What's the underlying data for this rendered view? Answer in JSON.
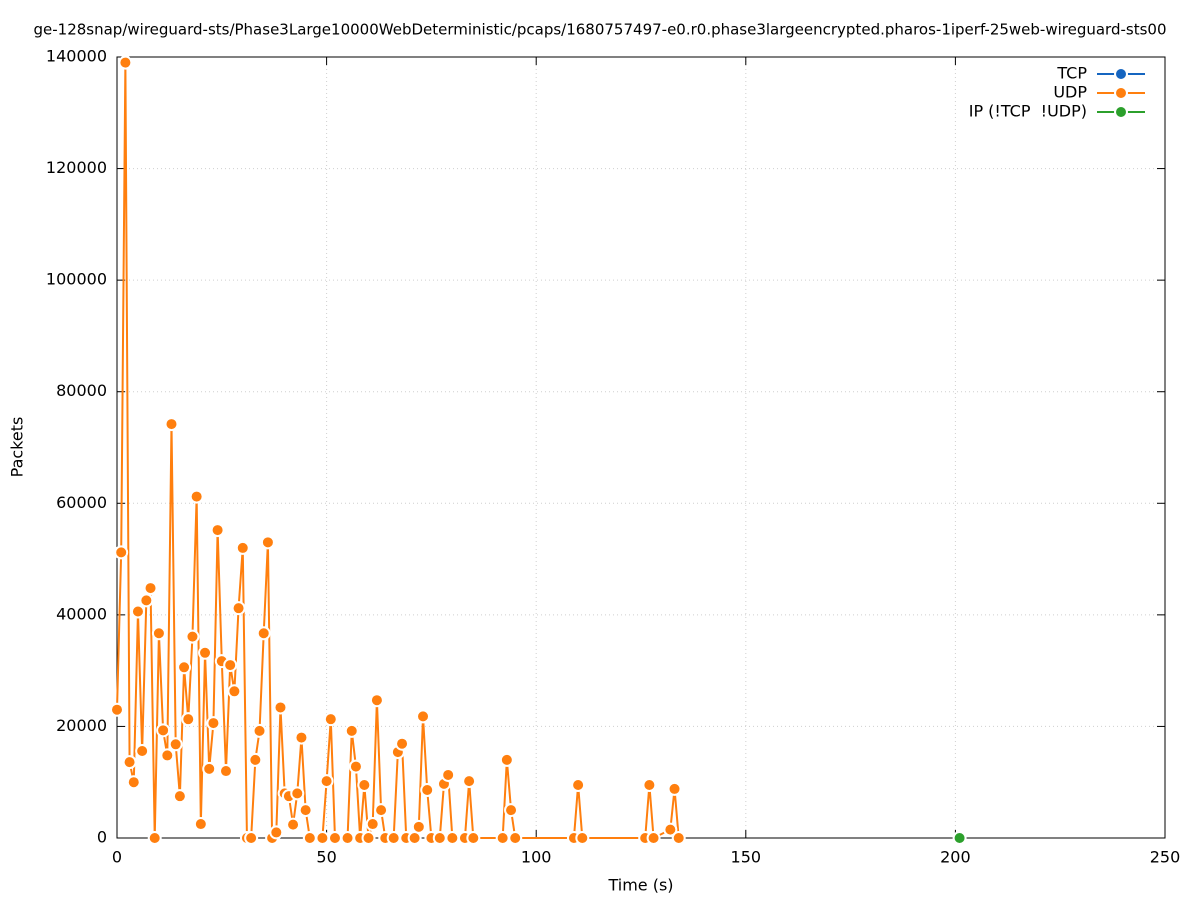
{
  "chart_data": {
    "type": "line",
    "title": "ge-128snap/wireguard-sts/Phase3Large10000WebDeterministic/pcaps/1680757497-e0.r0.phase3largeencrypted.pharos-1iperf-25web-wireguard-sts00",
    "xlabel": "Time (s)",
    "ylabel": "Packets",
    "xlim": [
      0,
      250
    ],
    "xticks": [
      0,
      50,
      100,
      150,
      200,
      250
    ],
    "ylim": [
      0,
      140000
    ],
    "yticks": [
      0,
      20000,
      40000,
      60000,
      80000,
      100000,
      120000,
      140000
    ],
    "grid": true,
    "legend": "top-right",
    "series": [
      {
        "name": "TCP",
        "color": "#1565c0",
        "x": [],
        "values": []
      },
      {
        "name": "UDP",
        "color": "#ff7f0e",
        "x": [
          0,
          1,
          2,
          3,
          4,
          5,
          6,
          7,
          8,
          9,
          10,
          11,
          12,
          13,
          14,
          15,
          16,
          17,
          18,
          19,
          20,
          21,
          22,
          23,
          24,
          25,
          26,
          27,
          28,
          29,
          30,
          31,
          32,
          33,
          34,
          35,
          36,
          37,
          38,
          39,
          40,
          41,
          42,
          43,
          44,
          45,
          46,
          49,
          50,
          51,
          52,
          55,
          56,
          57,
          58,
          59,
          60,
          61,
          62,
          63,
          64,
          66,
          67,
          68,
          69,
          71,
          72,
          73,
          74,
          75,
          77,
          78,
          79,
          80,
          83,
          84,
          85,
          92,
          93,
          94,
          95,
          109,
          110,
          111,
          126,
          127,
          128,
          132,
          133,
          134
        ],
        "values": [
          23000,
          51200,
          139000,
          13600,
          10000,
          40600,
          15600,
          42600,
          44800,
          0,
          36700,
          19300,
          14800,
          74200,
          16800,
          7500,
          30600,
          21300,
          36100,
          61200,
          2500,
          33200,
          12400,
          20600,
          55200,
          31700,
          12000,
          31000,
          26300,
          41200,
          52000,
          0,
          0,
          14000,
          19200,
          36700,
          53000,
          0,
          1000,
          23400,
          8000,
          7500,
          2400,
          8000,
          18000,
          5000,
          0,
          0,
          10200,
          21300,
          0,
          0,
          19200,
          12800,
          0,
          9500,
          0,
          2500,
          24700,
          5000,
          0,
          0,
          15400,
          16900,
          0,
          0,
          2000,
          21800,
          8600,
          0,
          0,
          9700,
          11300,
          0,
          0,
          10200,
          0,
          0,
          14000,
          5000,
          0,
          0,
          9500,
          0,
          0,
          9500,
          0,
          1500,
          8800,
          0
        ]
      },
      {
        "name": "IP (!TCP  !UDP)",
        "color": "#2ca02c",
        "x": [
          201
        ],
        "values": [
          0
        ]
      }
    ]
  }
}
